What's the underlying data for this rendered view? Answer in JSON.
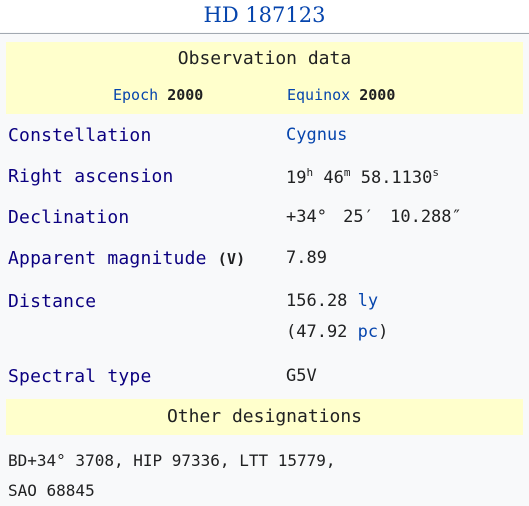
{
  "title": "HD 187123",
  "observation": {
    "header": "Observation data",
    "epoch_label": "Epoch",
    "epoch_value": "2000",
    "equinox_label": "Equinox",
    "equinox_value": "2000"
  },
  "rows": {
    "constellation": {
      "label": "Constellation",
      "value": "Cygnus"
    },
    "ra": {
      "label": "Right ascension",
      "h": "19",
      "h_unit": "h",
      "m": "46",
      "m_unit": "m",
      "s": "58.1130",
      "s_unit": "s"
    },
    "dec": {
      "label": "Declination",
      "value": "+34° 25′ 10.288″"
    },
    "mag": {
      "label": "Apparent magnitude",
      "band": "(V)",
      "value": "7.89"
    },
    "distance": {
      "label": "Distance",
      "ly_value": "156.28",
      "ly_unit": "ly",
      "pc_open": "(47.92",
      "pc_unit": "pc",
      "pc_close": ")"
    },
    "spectral": {
      "label": "Spectral type",
      "value": "G5V"
    }
  },
  "other": {
    "header": "Other designations",
    "line1": "BD+34° 3708, HIP 97336, LTT 15779,",
    "line2": "SAO 68845"
  }
}
